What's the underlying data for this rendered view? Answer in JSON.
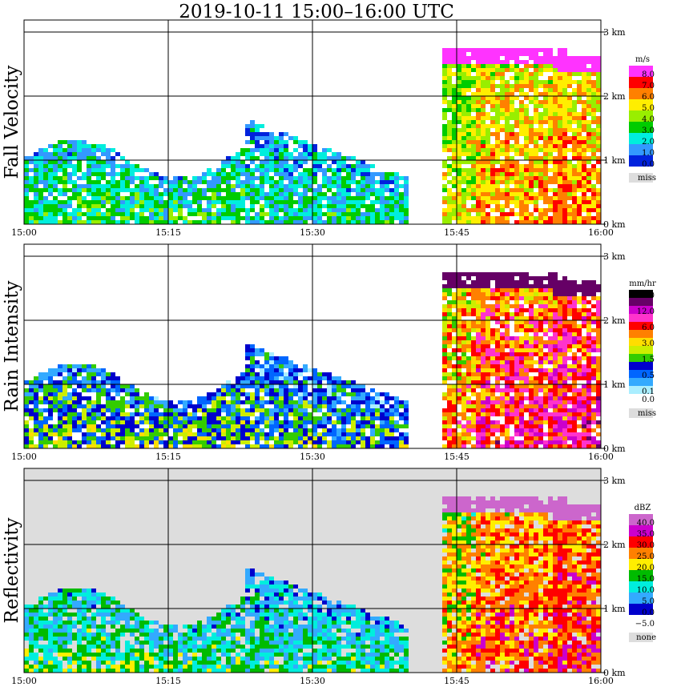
{
  "title": "2019-10-11   15:00–16:00 UTC",
  "chart_data": [
    {
      "type": "heatmap",
      "title": "Fall Velocity",
      "x_ticks": [
        "15:00",
        "15:15",
        "15:30",
        "15:45",
        "16:00"
      ],
      "y_ticks": [
        "0 km",
        "1 km",
        "2 km",
        "3 km"
      ],
      "ylim": [
        0,
        3.0
      ],
      "legend_unit": "m/s",
      "legend": [
        {
          "label": "8.0",
          "color": "#ff33ff"
        },
        {
          "label": "7.0",
          "color": "#ff0000"
        },
        {
          "label": "6.0",
          "color": "#ff8000"
        },
        {
          "label": "5.0",
          "color": "#ffee00"
        },
        {
          "label": "4.0",
          "color": "#99ee00"
        },
        {
          "label": "3.0",
          "color": "#00cc00"
        },
        {
          "label": "2.0",
          "color": "#00eedd"
        },
        {
          "label": "1.0",
          "color": "#3399ff"
        },
        {
          "label": "0.0",
          "color": "#0022dd"
        }
      ],
      "missing_label": "miss",
      "missing_color": "#dddddd",
      "background": "#ffffff"
    },
    {
      "type": "heatmap",
      "title": "Rain Intensity",
      "x_ticks": [
        "15:00",
        "15:15",
        "15:30",
        "15:45",
        "16:00"
      ],
      "y_ticks": [
        "0 km",
        "1 km",
        "2 km",
        "3 km"
      ],
      "ylim": [
        0,
        3.0
      ],
      "legend_unit": "mm/hr",
      "legend": [
        {
          "label": "48.0",
          "color": "#000000"
        },
        {
          "label": "",
          "color": "#660066"
        },
        {
          "label": "12.0",
          "color": "#cc00cc"
        },
        {
          "label": "",
          "color": "#ff33cc"
        },
        {
          "label": "6.0",
          "color": "#ff0000"
        },
        {
          "label": "",
          "color": "#ff8000"
        },
        {
          "label": "3.0",
          "color": "#ffdd00"
        },
        {
          "label": "",
          "color": "#ccee00"
        },
        {
          "label": "1.5",
          "color": "#33cc00"
        },
        {
          "label": "",
          "color": "#0000cc"
        },
        {
          "label": "0.5",
          "color": "#0066ff"
        },
        {
          "label": "",
          "color": "#33aaff"
        },
        {
          "label": "0.1",
          "color": "#aaeeff"
        },
        {
          "label": "0.0",
          "color": "#ffffff"
        }
      ],
      "missing_label": "miss",
      "missing_color": "#dddddd",
      "background": "#ffffff"
    },
    {
      "type": "heatmap",
      "title": "Reflectivity",
      "x_ticks": [
        "15:00",
        "15:15",
        "15:30",
        "15:45",
        "16:00"
      ],
      "y_ticks": [
        "0 km",
        "1 km",
        "2 km",
        "3 km"
      ],
      "ylim": [
        0,
        3.0
      ],
      "legend_unit": "dBZ",
      "legend": [
        {
          "label": "40.0",
          "color": "#cc66cc"
        },
        {
          "label": "35.0",
          "color": "#cc00cc"
        },
        {
          "label": "30.0",
          "color": "#ff0000"
        },
        {
          "label": "25.0",
          "color": "#ff8000"
        },
        {
          "label": "20.0",
          "color": "#ffee00"
        },
        {
          "label": "15.0",
          "color": "#00bb00"
        },
        {
          "label": "10.0",
          "color": "#00eedd"
        },
        {
          "label": "5.0",
          "color": "#33aaff"
        },
        {
          "label": "0.0",
          "color": "#0000cc"
        },
        {
          "label": "−5.0",
          "color": "#ffffff"
        }
      ],
      "missing_label": "none",
      "missing_color": "#dddddd",
      "background": "#dddddd"
    }
  ]
}
